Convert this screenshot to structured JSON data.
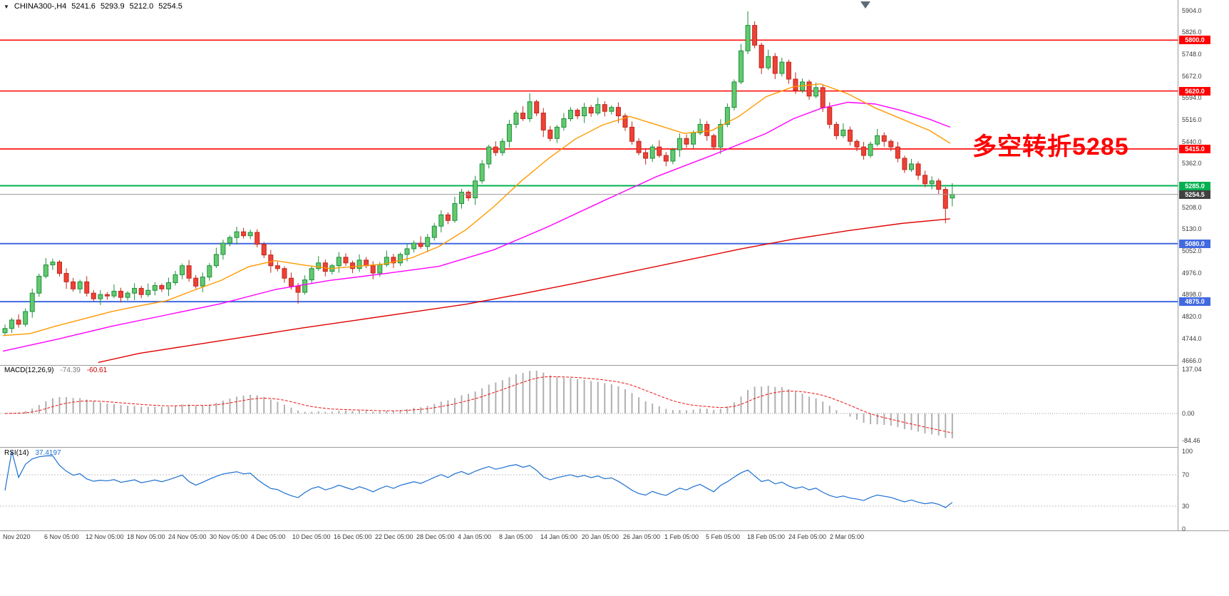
{
  "header": {
    "symbol": "CHINA300-,H4",
    "open": "5241.6",
    "high": "5293.9",
    "low": "5212.0",
    "close": "5254.5"
  },
  "annotation": {
    "text": "多空转折5285",
    "color": "#ff0000"
  },
  "indicators": {
    "macd": {
      "label": "MACD(12,26,9)",
      "main_value": "-74.39",
      "signal_value": "-60.61",
      "axis": [
        "137.04",
        "0.00",
        "-84.46"
      ],
      "axis_values": [
        137.04,
        0.0,
        -84.46
      ]
    },
    "rsi": {
      "label": "RSI(14)",
      "value": "37.4197",
      "axis": [
        "100",
        "70",
        "30",
        "0"
      ],
      "axis_values": [
        100,
        70,
        30,
        0
      ],
      "levels": [
        70,
        30
      ]
    }
  },
  "price_axis": {
    "ticks": [
      "5904.0",
      "5826.0",
      "5748.0",
      "5672.0",
      "5594.0",
      "5516.0",
      "5440.0",
      "5362.0",
      "5208.0",
      "5130.0",
      "5052.0",
      "4976.0",
      "4898.0",
      "4820.0",
      "4744.0",
      "4666.0"
    ]
  },
  "time_axis": {
    "labels": [
      "Nov 2020",
      "6 Nov 05:00",
      "12 Nov 05:00",
      "18 Nov 05:00",
      "24 Nov 05:00",
      "30 Nov 05:00",
      "4 Dec 05:00",
      "10 Dec 05:00",
      "16 Dec 05:00",
      "22 Dec 05:00",
      "28 Dec 05:00",
      "4 Jan 05:00",
      "8 Jan 05:00",
      "14 Jan 05:00",
      "20 Jan 05:00",
      "26 Jan 05:00",
      "1 Feb 05:00",
      "5 Feb 05:00",
      "18 Feb 05:00",
      "24 Feb 05:00",
      "2 Mar 05:00"
    ]
  },
  "colors": {
    "bull_fill": "#63c96e",
    "bull_border": "#1d8f3d",
    "bear_fill": "#ef4136",
    "bear_border": "#bf271d",
    "ma_fast": "#ff9900",
    "ma_mid": "#ff00ff",
    "ma_slow": "#e00000",
    "level_red": "#ff0000",
    "level_green": "#00b050",
    "level_blue": "#4169e1",
    "current_price_line": "#9a9a9a",
    "current_price_badge": "#404040",
    "macd_hist": "#b0b0b0",
    "macd_signal": "#ee1111",
    "rsi_line": "#1c6fd1",
    "separator": "#9c9c9c"
  },
  "chart_data": {
    "type": "candlestick",
    "symbol": "CHINA300-",
    "timeframe": "H4",
    "title": "CHINA300- H4 candlestick chart with MA overlays, MACD(12,26,9) and RSI(14)",
    "price_range": {
      "min": 4666.0,
      "max": 5904.0
    },
    "levels": [
      {
        "value": 5800.0,
        "label": "5800.0",
        "color": "#ff0000"
      },
      {
        "value": 5620.0,
        "label": "5620.0",
        "color": "#ff0000"
      },
      {
        "value": 5415.0,
        "label": "5415.0",
        "color": "#ff0000"
      },
      {
        "value": 5285.0,
        "label": "5285.0",
        "color": "#00b050"
      },
      {
        "value": 5080.0,
        "label": "5080.0",
        "color": "#4169e1"
      },
      {
        "value": 4875.0,
        "label": "4875.0",
        "color": "#4169e1"
      }
    ],
    "current_price": {
      "value": 5254.5,
      "label": "5254.5"
    },
    "candles": [
      [
        4765,
        4794,
        4755,
        4780
      ],
      [
        4780,
        4818,
        4764,
        4810
      ],
      [
        4810,
        4830,
        4783,
        4795
      ],
      [
        4795,
        4851,
        4786,
        4840
      ],
      [
        4840,
        4921,
        4818,
        4905
      ],
      [
        4905,
        4974,
        4892,
        4965
      ],
      [
        4965,
        5029,
        4957,
        5005
      ],
      [
        5005,
        5027,
        4987,
        5015
      ],
      [
        5015,
        5022,
        4964,
        4975
      ],
      [
        4975,
        4993,
        4920,
        4945
      ],
      [
        4945,
        4959,
        4910,
        4920
      ],
      [
        4920,
        4953,
        4904,
        4945
      ],
      [
        4945,
        4965,
        4893,
        4905
      ],
      [
        4905,
        4916,
        4876,
        4885
      ],
      [
        4885,
        4916,
        4863,
        4900
      ],
      [
        4900,
        4909,
        4882,
        4895
      ],
      [
        4895,
        4936,
        4887,
        4912
      ],
      [
        4912,
        4924,
        4872,
        4890
      ],
      [
        4890,
        4912,
        4879,
        4905
      ],
      [
        4905,
        4940,
        4880,
        4922
      ],
      [
        4922,
        4931,
        4887,
        4900
      ],
      [
        4900,
        4939,
        4892,
        4915
      ],
      [
        4915,
        4944,
        4897,
        4932
      ],
      [
        4932,
        4939,
        4909,
        4920
      ],
      [
        4920,
        4960,
        4895,
        4942
      ],
      [
        4942,
        4984,
        4932,
        4970
      ],
      [
        4970,
        5010,
        4954,
        5002
      ],
      [
        5002,
        5022,
        4946,
        4958
      ],
      [
        4958,
        4969,
        4921,
        4930
      ],
      [
        4930,
        4978,
        4908,
        4962
      ],
      [
        4962,
        5011,
        4949,
        5002
      ],
      [
        5002,
        5066,
        4994,
        5042
      ],
      [
        5042,
        5094,
        5024,
        5082
      ],
      [
        5082,
        5109,
        5071,
        5102
      ],
      [
        5102,
        5140,
        5077,
        5122
      ],
      [
        5122,
        5136,
        5098,
        5108
      ],
      [
        5108,
        5130,
        5096,
        5120
      ],
      [
        5120,
        5131,
        5067,
        5078
      ],
      [
        5078,
        5086,
        5029,
        5040
      ],
      [
        5040,
        5058,
        4977,
        5002
      ],
      [
        5002,
        5016,
        4982,
        4992
      ],
      [
        4992,
        5000,
        4942,
        4958
      ],
      [
        4958,
        4978,
        4918,
        4930
      ],
      [
        4930,
        4941,
        4868,
        4908
      ],
      [
        4908,
        4968,
        4900,
        4952
      ],
      [
        4952,
        5001,
        4939,
        4992
      ],
      [
        4992,
        5036,
        4984,
        5012
      ],
      [
        5012,
        5024,
        4964,
        4982
      ],
      [
        4982,
        5009,
        4971,
        5002
      ],
      [
        5002,
        5050,
        4977,
        5032
      ],
      [
        5032,
        5046,
        5002,
        5012
      ],
      [
        5012,
        5020,
        4976,
        4992
      ],
      [
        4992,
        5042,
        4980,
        5022
      ],
      [
        5022,
        5033,
        4993,
        5002
      ],
      [
        5002,
        5018,
        4954,
        4976
      ],
      [
        4976,
        5015,
        4963,
        5006
      ],
      [
        5006,
        5056,
        4998,
        5032
      ],
      [
        5032,
        5044,
        4994,
        5012
      ],
      [
        5012,
        5049,
        5001,
        5042
      ],
      [
        5042,
        5080,
        5017,
        5062
      ],
      [
        5062,
        5091,
        5049,
        5082
      ],
      [
        5082,
        5106,
        5062,
        5070
      ],
      [
        5070,
        5114,
        5050,
        5102
      ],
      [
        5102,
        5153,
        5091,
        5142
      ],
      [
        5142,
        5198,
        5120,
        5182
      ],
      [
        5182,
        5191,
        5149,
        5162
      ],
      [
        5162,
        5246,
        5154,
        5222
      ],
      [
        5222,
        5274,
        5204,
        5262
      ],
      [
        5262,
        5269,
        5231,
        5242
      ],
      [
        5242,
        5320,
        5217,
        5302
      ],
      [
        5302,
        5376,
        5292,
        5362
      ],
      [
        5362,
        5430,
        5346,
        5422
      ],
      [
        5422,
        5442,
        5390,
        5402
      ],
      [
        5402,
        5453,
        5391,
        5442
      ],
      [
        5442,
        5518,
        5420,
        5502
      ],
      [
        5502,
        5551,
        5489,
        5542
      ],
      [
        5542,
        5566,
        5514,
        5522
      ],
      [
        5522,
        5612,
        5510,
        5582
      ],
      [
        5582,
        5589,
        5531,
        5542
      ],
      [
        5542,
        5560,
        5457,
        5482
      ],
      [
        5482,
        5496,
        5442,
        5452
      ],
      [
        5452,
        5500,
        5436,
        5492
      ],
      [
        5492,
        5542,
        5480,
        5522
      ],
      [
        5522,
        5563,
        5513,
        5552
      ],
      [
        5552,
        5559,
        5521,
        5532
      ],
      [
        5532,
        5578,
        5507,
        5562
      ],
      [
        5562,
        5571,
        5529,
        5542
      ],
      [
        5542,
        5596,
        5534,
        5572
      ],
      [
        5572,
        5584,
        5530,
        5548
      ],
      [
        5548,
        5569,
        5537,
        5562
      ],
      [
        5562,
        5580,
        5507,
        5532
      ],
      [
        5532,
        5541,
        5479,
        5492
      ],
      [
        5492,
        5512,
        5430,
        5442
      ],
      [
        5442,
        5453,
        5393,
        5402
      ],
      [
        5402,
        5418,
        5360,
        5382
      ],
      [
        5382,
        5431,
        5369,
        5422
      ],
      [
        5422,
        5446,
        5384,
        5392
      ],
      [
        5392,
        5404,
        5354,
        5372
      ],
      [
        5372,
        5419,
        5361,
        5412
      ],
      [
        5412,
        5470,
        5387,
        5452
      ],
      [
        5452,
        5466,
        5419,
        5432
      ],
      [
        5432,
        5480,
        5416,
        5472
      ],
      [
        5472,
        5522,
        5464,
        5502
      ],
      [
        5502,
        5514,
        5444,
        5462
      ],
      [
        5462,
        5469,
        5411,
        5422
      ],
      [
        5422,
        5520,
        5397,
        5502
      ],
      [
        5502,
        5576,
        5492,
        5562
      ],
      [
        5562,
        5661,
        5551,
        5652
      ],
      [
        5652,
        5786,
        5644,
        5762
      ],
      [
        5762,
        5902,
        5750,
        5852
      ],
      [
        5852,
        5866,
        5771,
        5782
      ],
      [
        5782,
        5791,
        5680,
        5702
      ],
      [
        5702,
        5766,
        5694,
        5742
      ],
      [
        5742,
        5754,
        5662,
        5682
      ],
      [
        5682,
        5738,
        5671,
        5722
      ],
      [
        5722,
        5731,
        5645,
        5662
      ],
      [
        5662,
        5686,
        5610,
        5622
      ],
      [
        5622,
        5664,
        5613,
        5652
      ],
      [
        5652,
        5660,
        5589,
        5602
      ],
      [
        5602,
        5650,
        5594,
        5632
      ],
      [
        5632,
        5641,
        5546,
        5562
      ],
      [
        5562,
        5580,
        5487,
        5502
      ],
      [
        5502,
        5511,
        5449,
        5462
      ],
      [
        5462,
        5506,
        5454,
        5482
      ],
      [
        5482,
        5494,
        5427,
        5442
      ],
      [
        5442,
        5449,
        5407,
        5422
      ],
      [
        5422,
        5440,
        5377,
        5392
      ],
      [
        5392,
        5441,
        5383,
        5432
      ],
      [
        5432,
        5486,
        5424,
        5462
      ],
      [
        5462,
        5474,
        5423,
        5442
      ],
      [
        5442,
        5449,
        5407,
        5422
      ],
      [
        5422,
        5440,
        5368,
        5382
      ],
      [
        5382,
        5391,
        5330,
        5342
      ],
      [
        5342,
        5380,
        5334,
        5362
      ],
      [
        5362,
        5371,
        5305,
        5322
      ],
      [
        5322,
        5338,
        5280,
        5292
      ],
      [
        5292,
        5318,
        5272,
        5302
      ],
      [
        5302,
        5311,
        5255,
        5272
      ],
      [
        5272,
        5281,
        5152,
        5205
      ],
      [
        5241.6,
        5293.9,
        5212.0,
        5254.5
      ]
    ],
    "overlays": {
      "ma_fast_orange": [
        [
          0,
          4755
        ],
        [
          4,
          4762
        ],
        [
          8,
          4790
        ],
        [
          12,
          4815
        ],
        [
          16,
          4840
        ],
        [
          20,
          4860
        ],
        [
          24,
          4878
        ],
        [
          28,
          4915
        ],
        [
          32,
          4950
        ],
        [
          36,
          4998
        ],
        [
          40,
          5020
        ],
        [
          44,
          5005
        ],
        [
          48,
          4992
        ],
        [
          52,
          5000
        ],
        [
          56,
          5008
        ],
        [
          60,
          5030
        ],
        [
          64,
          5070
        ],
        [
          68,
          5130
        ],
        [
          72,
          5210
        ],
        [
          76,
          5300
        ],
        [
          80,
          5380
        ],
        [
          84,
          5450
        ],
        [
          88,
          5500
        ],
        [
          92,
          5530
        ],
        [
          96,
          5500
        ],
        [
          100,
          5470
        ],
        [
          104,
          5480
        ],
        [
          108,
          5530
        ],
        [
          112,
          5600
        ],
        [
          116,
          5635
        ],
        [
          120,
          5645
        ],
        [
          124,
          5610
        ],
        [
          128,
          5560
        ],
        [
          132,
          5520
        ],
        [
          136,
          5480
        ],
        [
          139,
          5435
        ]
      ],
      "ma_mid_magenta": [
        [
          0,
          4700
        ],
        [
          8,
          4742
        ],
        [
          16,
          4788
        ],
        [
          24,
          4828
        ],
        [
          32,
          4868
        ],
        [
          40,
          4918
        ],
        [
          48,
          4950
        ],
        [
          56,
          4974
        ],
        [
          64,
          5000
        ],
        [
          72,
          5058
        ],
        [
          80,
          5140
        ],
        [
          88,
          5230
        ],
        [
          96,
          5318
        ],
        [
          104,
          5392
        ],
        [
          112,
          5470
        ],
        [
          116,
          5522
        ],
        [
          120,
          5558
        ],
        [
          124,
          5580
        ],
        [
          128,
          5574
        ],
        [
          132,
          5550
        ],
        [
          136,
          5520
        ],
        [
          139,
          5492
        ]
      ],
      "ma_slow_red": [
        [
          14,
          4660
        ],
        [
          20,
          4692
        ],
        [
          28,
          4722
        ],
        [
          36,
          4752
        ],
        [
          44,
          4782
        ],
        [
          52,
          4810
        ],
        [
          60,
          4838
        ],
        [
          68,
          4866
        ],
        [
          76,
          4902
        ],
        [
          84,
          4940
        ],
        [
          92,
          4980
        ],
        [
          100,
          5020
        ],
        [
          108,
          5060
        ],
        [
          116,
          5096
        ],
        [
          124,
          5126
        ],
        [
          132,
          5152
        ],
        [
          139,
          5168
        ]
      ]
    }
  }
}
